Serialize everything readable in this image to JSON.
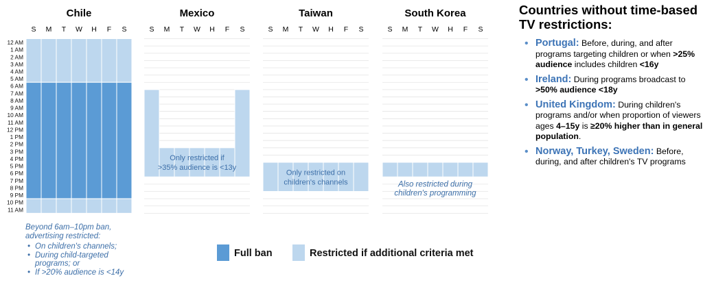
{
  "chart_data": {
    "type": "heatmap",
    "day_labels": [
      "S",
      "M",
      "T",
      "W",
      "H",
      "F",
      "S"
    ],
    "hour_labels": [
      "12 AM",
      "1 AM",
      "2 AM",
      "3 AM",
      "4 AM",
      "5 AM",
      "6 AM",
      "7 AM",
      "8 AM",
      "9 AM",
      "10 AM",
      "11 AM",
      "12 PM",
      "1 PM",
      "2 PM",
      "3 PM",
      "4 PM",
      "5 PM",
      "6 PM",
      "7 PM",
      "8 PM",
      "9 PM",
      "10 PM",
      "11 AM"
    ],
    "legend": [
      {
        "label": "Full ban",
        "color": "#5b9bd5"
      },
      {
        "label": "Restricted if additional criteria met",
        "color": "#bdd7ee"
      }
    ],
    "panels": [
      {
        "title": "Chile",
        "blocks": [
          {
            "days": [
              0,
              6
            ],
            "start_hour": 0,
            "end_hour": 6,
            "level": "restricted"
          },
          {
            "days": [
              0,
              6
            ],
            "start_hour": 6,
            "end_hour": 22,
            "level": "full_ban"
          },
          {
            "days": [
              0,
              6
            ],
            "start_hour": 22,
            "end_hour": 24,
            "level": "restricted"
          }
        ],
        "note": {
          "lines": [
            "Beyond 6am–10pm ban,",
            "advertising restricted:"
          ],
          "bullets": [
            [
              "On children's channels;"
            ],
            [
              "During child-targeted",
              "programs; or"
            ],
            [
              "If >20% audience is <14y"
            ]
          ]
        }
      },
      {
        "title": "Mexico",
        "blocks": [
          {
            "days": [
              0,
              0
            ],
            "start_hour": 7,
            "end_hour": 19,
            "level": "restricted"
          },
          {
            "days": [
              1,
              5
            ],
            "start_hour": 15,
            "end_hour": 19,
            "level": "restricted"
          },
          {
            "days": [
              6,
              6
            ],
            "start_hour": 7,
            "end_hour": 19,
            "level": "restricted"
          }
        ],
        "inner_text": [
          "Only restricted if",
          ">35% audience is  <13y"
        ]
      },
      {
        "title": "Taiwan",
        "blocks": [
          {
            "days": [
              0,
              6
            ],
            "start_hour": 17,
            "end_hour": 21,
            "level": "restricted"
          }
        ],
        "inner_text": [
          "Only restricted on",
          "children's channels"
        ]
      },
      {
        "title": "South Korea",
        "blocks": [
          {
            "days": [
              0,
              6
            ],
            "start_hour": 17,
            "end_hour": 19,
            "level": "restricted"
          }
        ],
        "note_lines": [
          "Also restricted during",
          "children's programming"
        ]
      }
    ]
  },
  "right_panel": {
    "title": "Countries without time-based TV restrictions:",
    "items": [
      {
        "name": "Portugal:",
        "segments": [
          {
            "t": " Before, during, and after programs targeting children or when ",
            "b": false
          },
          {
            "t": ">25% audience",
            "b": true
          },
          {
            "t": " includes children ",
            "b": false
          },
          {
            "t": "<16y",
            "b": true
          }
        ]
      },
      {
        "name": "Ireland:",
        "segments": [
          {
            "t": " During programs broadcast to ",
            "b": false
          },
          {
            "t": ">50% audience <18y",
            "b": true
          }
        ]
      },
      {
        "name": "United Kingdom:",
        "segments": [
          {
            "t": " During children's programs and/or when proportion of viewers ages ",
            "b": false
          },
          {
            "t": "4–15y",
            "b": true
          },
          {
            "t": " is ",
            "b": false
          },
          {
            "t": "≥20% higher than in general population",
            "b": true
          },
          {
            "t": ".",
            "b": false
          }
        ]
      },
      {
        "name": "Norway, Turkey, Sweden:",
        "segments": [
          {
            "t": " Before, during, and after children's TV programs",
            "b": false
          }
        ]
      }
    ]
  }
}
